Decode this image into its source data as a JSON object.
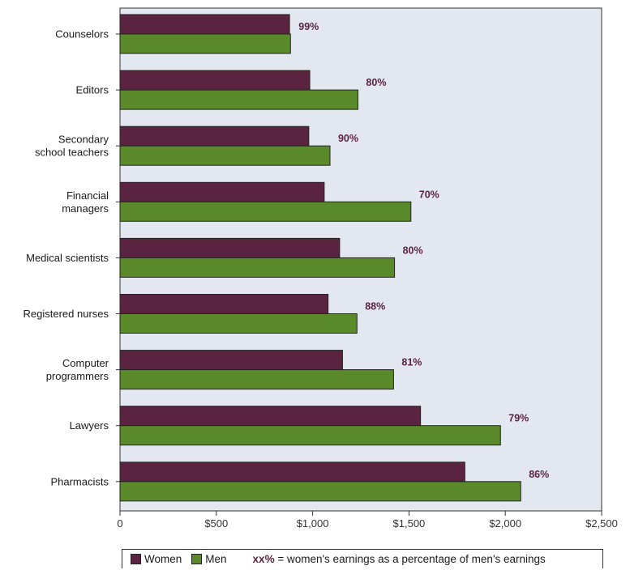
{
  "chart_data": {
    "type": "bar",
    "orientation": "horizontal",
    "categories": [
      [
        "Counselors"
      ],
      [
        "Editors"
      ],
      [
        "Secondary",
        "school teachers"
      ],
      [
        "Financial",
        "managers"
      ],
      [
        "Medical scientists"
      ],
      [
        "Registered nurses"
      ],
      [
        "Computer",
        "programmers"
      ],
      [
        "Lawyers"
      ],
      [
        "Pharmacists"
      ]
    ],
    "series": [
      {
        "name": "Women",
        "color": "#5a2440",
        "values": [
          880,
          985,
          980,
          1060,
          1140,
          1080,
          1155,
          1560,
          1790
        ]
      },
      {
        "name": "Men",
        "color": "#5a8a2a",
        "values": [
          885,
          1235,
          1090,
          1510,
          1425,
          1230,
          1420,
          1975,
          2080
        ]
      }
    ],
    "percent_labels": [
      "99%",
      "80%",
      "90%",
      "70%",
      "80%",
      "88%",
      "81%",
      "79%",
      "86%"
    ],
    "xlim": [
      0,
      2500
    ],
    "xticks": [
      0,
      500,
      1000,
      1500,
      2000,
      2500
    ],
    "xtick_labels": [
      "0",
      "$500",
      "$1,000",
      "$1,500",
      "$2,000",
      "$2,500"
    ],
    "plot_background": "#e3e7ef",
    "legend": {
      "placement": "bottom",
      "women_label": "Women",
      "men_label": "Men",
      "note_key": "xx%",
      "note_text": " = women's earnings as a percentage of men's earnings"
    }
  }
}
